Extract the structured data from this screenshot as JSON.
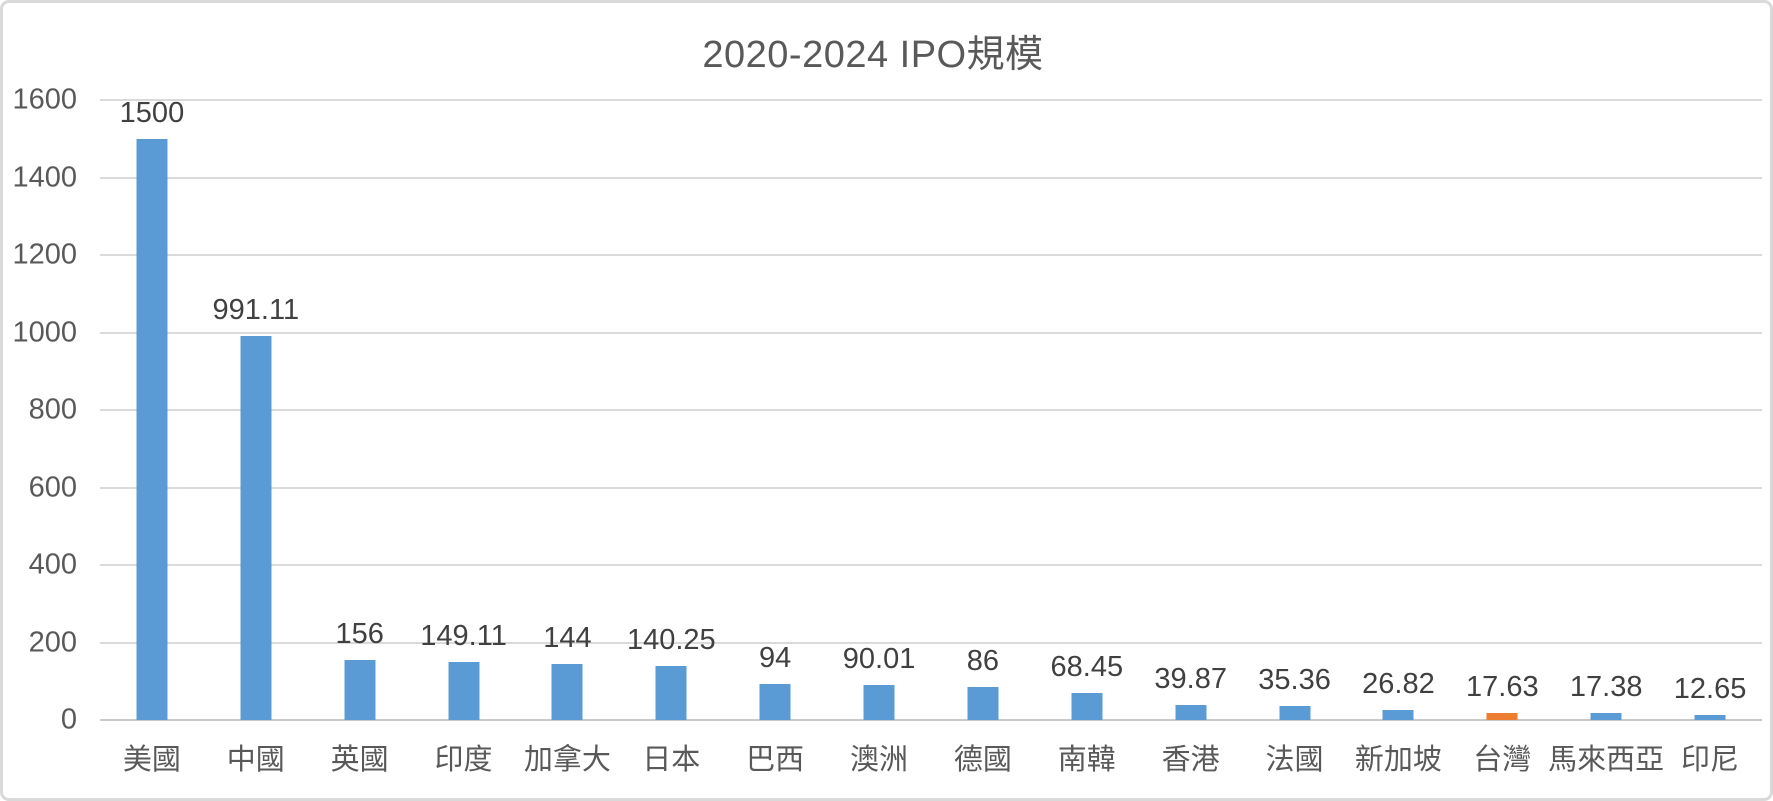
{
  "chart_data": {
    "type": "bar",
    "title": "2020-2024 IPO規模",
    "xlabel": "",
    "ylabel": "",
    "legend": "none",
    "grid": true,
    "ylim": [
      0,
      1600
    ],
    "y_ticks": [
      0,
      200,
      400,
      600,
      800,
      1000,
      1200,
      1400,
      1600
    ],
    "categories": [
      "美國",
      "中國",
      "英國",
      "印度",
      "加拿大",
      "日本",
      "巴西",
      "澳洲",
      "德國",
      "南韓",
      "香港",
      "法國",
      "新加坡",
      "台灣",
      "馬來西亞",
      "印尼"
    ],
    "values": [
      1500,
      991.11,
      156,
      149.11,
      144,
      140.25,
      94,
      90.01,
      86,
      68.45,
      39.87,
      35.36,
      26.82,
      17.63,
      17.38,
      12.65
    ],
    "value_labels": [
      "1500",
      "991.11",
      "156",
      "149.11",
      "144",
      "140.25",
      "94",
      "90.01",
      "86",
      "68.45",
      "39.87",
      "35.36",
      "26.82",
      "17.63",
      "17.38",
      "12.65"
    ],
    "highlight_index": 13,
    "highlight_category": "台灣",
    "colors": {
      "bar": "#5B9BD5",
      "highlight_bar": "#ED7D31",
      "title_text": "#595959",
      "axis_text": "#595959",
      "value_text": "#404040",
      "gridline": "#DADADA",
      "frame_border": "#D9D9D9"
    }
  }
}
